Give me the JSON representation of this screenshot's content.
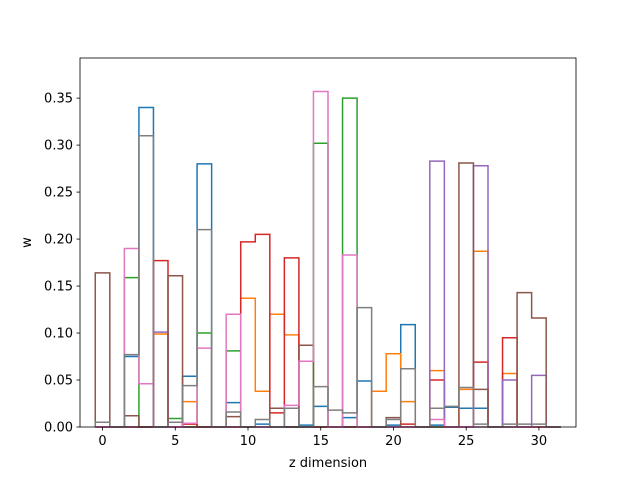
{
  "chart_data": {
    "type": "step",
    "xlabel": "z dimension",
    "ylabel": "w",
    "xlim": [
      -1.55,
      32.55
    ],
    "ylim": [
      0,
      0.3927
    ],
    "xticks": [
      0,
      5,
      10,
      15,
      20,
      25,
      30
    ],
    "yticks": [
      0.0,
      0.05,
      0.1,
      0.15,
      0.2,
      0.25,
      0.3,
      0.35
    ],
    "ytick_labels": [
      "0.00",
      "0.05",
      "0.10",
      "0.15",
      "0.20",
      "0.25",
      "0.30",
      "0.35"
    ],
    "grid": false,
    "legend": false,
    "series": [
      {
        "color": "#1f77b4",
        "values": [
          0,
          0,
          0.075,
          0.34,
          0,
          0,
          0.054,
          0.28,
          0,
          0.026,
          0,
          0.003,
          0,
          0,
          0.002,
          0.022,
          0,
          0.01,
          0.049,
          0,
          0.002,
          0.109,
          0,
          0.002,
          0.021,
          0.02,
          0.02,
          0,
          0,
          0,
          0,
          0
        ]
      },
      {
        "color": "#ff7f0e",
        "values": [
          0,
          0,
          0,
          0,
          0.099,
          0,
          0.027,
          0,
          0,
          0,
          0.137,
          0.038,
          0.12,
          0.098,
          0,
          0,
          0,
          0,
          0,
          0.038,
          0.078,
          0.027,
          0,
          0.06,
          0,
          0.04,
          0.187,
          0,
          0.057,
          0,
          0,
          0
        ]
      },
      {
        "color": "#2ca02c",
        "values": [
          0,
          0,
          0.159,
          0,
          0,
          0.009,
          0,
          0.1,
          0,
          0.081,
          0,
          0,
          0,
          0,
          0,
          0.302,
          0,
          0.35,
          0,
          0,
          0,
          0,
          0,
          0,
          0,
          0,
          0,
          0,
          0,
          0,
          0,
          0
        ]
      },
      {
        "color": "#d62728",
        "values": [
          0,
          0,
          0,
          0,
          0.177,
          0,
          0.003,
          0,
          0,
          0,
          0.197,
          0.205,
          0.015,
          0.18,
          0,
          0,
          0,
          0,
          0,
          0,
          0,
          0.003,
          0,
          0.05,
          0,
          0,
          0.069,
          0,
          0.095,
          0,
          0,
          0
        ]
      },
      {
        "color": "#9467bd",
        "values": [
          0,
          0,
          0,
          0,
          0.101,
          0,
          0,
          0,
          0,
          0,
          0,
          0,
          0,
          0,
          0,
          0,
          0,
          0,
          0,
          0,
          0,
          0,
          0,
          0.283,
          0,
          0,
          0.278,
          0,
          0.05,
          0,
          0.055,
          0
        ]
      },
      {
        "color": "#8c564b",
        "values": [
          0.164,
          0,
          0.012,
          0,
          0,
          0.161,
          0,
          0,
          0,
          0.011,
          0,
          0,
          0.02,
          0,
          0.087,
          0,
          0,
          0,
          0,
          0,
          0.01,
          0,
          0,
          0,
          0,
          0.281,
          0.04,
          0,
          0,
          0.143,
          0.116,
          0
        ]
      },
      {
        "color": "#e377c2",
        "values": [
          0,
          0,
          0.19,
          0.046,
          0,
          0,
          0.004,
          0.084,
          0,
          0.12,
          0,
          0,
          0,
          0.023,
          0.07,
          0.357,
          0,
          0.183,
          0,
          0,
          0,
          0,
          0,
          0.008,
          0,
          0,
          0,
          0,
          0,
          0,
          0,
          0
        ]
      },
      {
        "color": "#7f7f7f",
        "values": [
          0.005,
          0,
          0.077,
          0.31,
          0,
          0.005,
          0.044,
          0.21,
          0,
          0.016,
          0,
          0.008,
          0,
          0.02,
          0,
          0.043,
          0.018,
          0.015,
          0.127,
          0,
          0.008,
          0.062,
          0,
          0.02,
          0.022,
          0.042,
          0.003,
          0,
          0.003,
          0.003,
          0.003,
          0
        ]
      }
    ]
  }
}
